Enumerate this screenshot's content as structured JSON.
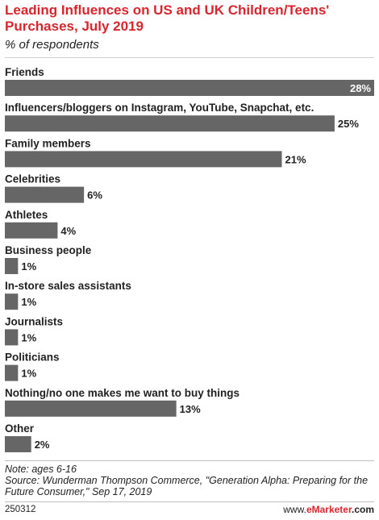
{
  "header": {
    "title": "Leading Influences on US and UK Children/Teens' Purchases, July 2019",
    "subtitle": "% of respondents"
  },
  "chart_data": {
    "type": "bar",
    "orientation": "horizontal",
    "title": "Leading Influences on US and UK Children/Teens' Purchases, July 2019",
    "subtitle": "% of respondents",
    "categories": [
      "Friends",
      "Influencers/bloggers on Instagram, YouTube, Snapchat, etc.",
      "Family members",
      "Celebrities",
      "Athletes",
      "Business people",
      "In-store sales assistants",
      "Journalists",
      "Politicians",
      "Nothing/no one makes me want to buy things",
      "Other"
    ],
    "values": [
      28,
      25,
      21,
      6,
      4,
      1,
      1,
      1,
      1,
      13,
      2
    ],
    "value_labels": [
      "28%",
      "25%",
      "21%",
      "6%",
      "4%",
      "1%",
      "1%",
      "1%",
      "1%",
      "13%",
      "2%"
    ],
    "xlim": [
      0,
      28
    ],
    "grid": false,
    "legend": "none",
    "bar_color": "#666666"
  },
  "footer": {
    "note": "Note: ages 6-16",
    "source": "Source: Wunderman Thompson Commerce, \"Generation Alpha: Preparing for the Future Consumer,\" Sep 17, 2019",
    "chart_id": "250312",
    "brand_prefix": "www.",
    "brand_name": "eMarketer",
    "brand_suffix": ".com"
  },
  "colors": {
    "title": "#d7262e",
    "bar": "#666666",
    "text": "#222222"
  }
}
